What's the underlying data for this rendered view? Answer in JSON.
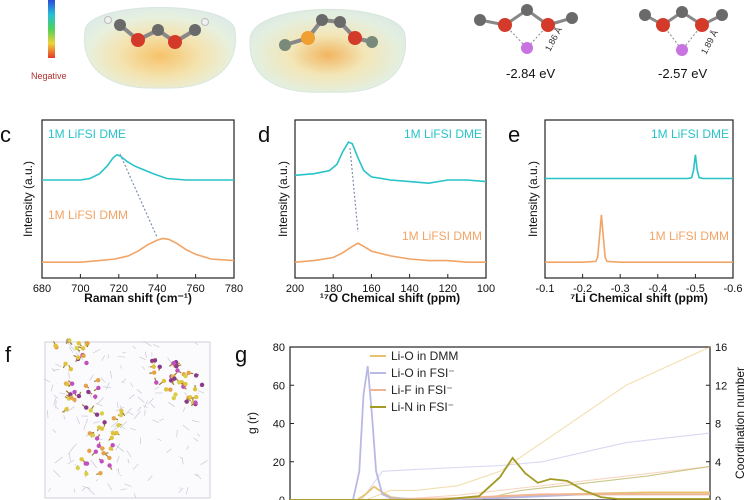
{
  "colors": {
    "dme": "#28c3c8",
    "dmm": "#f2a465",
    "li_o_dmm": "#e8c26d",
    "li_o_fsi": "#b9b9e6",
    "li_f_fsi": "#f2b591",
    "li_n_fsi": "#a39a26",
    "axis": "#222222",
    "dashed": "#7f8fb0"
  },
  "top_panel": {
    "legend_label": "Negative",
    "distance_1": "1.86 Å",
    "distance_2": "1.89 Å",
    "energy_1": "-2.84 eV",
    "energy_2": "-2.57 eV"
  },
  "panel_letters": {
    "c": "c",
    "d": "d",
    "e": "e",
    "f": "f",
    "g": "g"
  },
  "chart_data": [
    {
      "id": "c",
      "type": "line",
      "xlabel": "Raman shift (cm⁻¹)",
      "ylabel": "Intensity (a.u.)",
      "xlim": [
        680,
        780
      ],
      "xticks": [
        "680",
        "700",
        "720",
        "740",
        "760",
        "780"
      ],
      "series": [
        {
          "name": "1M LiFSI DME",
          "x": [
            680,
            690,
            700,
            705,
            710,
            714,
            717,
            719,
            721,
            724,
            728,
            732,
            738,
            745,
            755,
            765,
            780
          ],
          "y": [
            0.62,
            0.62,
            0.62,
            0.63,
            0.66,
            0.71,
            0.76,
            0.78,
            0.77,
            0.74,
            0.71,
            0.69,
            0.66,
            0.63,
            0.62,
            0.62,
            0.62
          ]
        },
        {
          "name": "1M LiFSI DMM",
          "x": [
            680,
            690,
            700,
            710,
            718,
            725,
            730,
            735,
            740,
            743,
            746,
            750,
            755,
            760,
            768,
            780
          ],
          "y": [
            0.1,
            0.1,
            0.1,
            0.11,
            0.12,
            0.14,
            0.17,
            0.21,
            0.24,
            0.25,
            0.245,
            0.22,
            0.18,
            0.15,
            0.12,
            0.11
          ]
        }
      ]
    },
    {
      "id": "d",
      "type": "line",
      "xlabel": "¹⁷O Chemical shift (ppm)",
      "ylabel": "Intensity (a.u.)",
      "xlim": [
        200,
        100
      ],
      "xticks": [
        "200",
        "180",
        "160",
        "140",
        "120",
        "100"
      ],
      "series": [
        {
          "name": "1M LiFSI DME",
          "x": [
            200,
            190,
            182,
            178,
            175,
            172,
            170,
            167,
            164,
            160,
            150,
            140,
            130,
            120,
            110,
            100
          ],
          "y": [
            0.65,
            0.66,
            0.68,
            0.72,
            0.8,
            0.86,
            0.85,
            0.76,
            0.68,
            0.64,
            0.62,
            0.61,
            0.6,
            0.62,
            0.62,
            0.61
          ]
        },
        {
          "name": "1M LiFSI DMM",
          "x": [
            200,
            190,
            180,
            175,
            170,
            167,
            164,
            160,
            150,
            140,
            130,
            120,
            110,
            100
          ],
          "y": [
            0.1,
            0.11,
            0.13,
            0.16,
            0.2,
            0.22,
            0.2,
            0.17,
            0.14,
            0.12,
            0.11,
            0.11,
            0.1,
            0.1
          ]
        }
      ]
    },
    {
      "id": "e",
      "type": "line",
      "xlabel": "⁷Li Chemical shift (ppm)",
      "ylabel": "Intensity (a.u.)",
      "xlim": [
        -0.1,
        -0.6
      ],
      "xticks": [
        "-0.1",
        "-0.2",
        "-0.3",
        "-0.4",
        "-0.5",
        "-0.6"
      ],
      "series": [
        {
          "name": "1M LiFSI DME",
          "x": [
            -0.1,
            -0.3,
            -0.48,
            -0.49,
            -0.495,
            -0.5,
            -0.505,
            -0.51,
            -0.52,
            -0.6
          ],
          "y": [
            0.63,
            0.63,
            0.63,
            0.635,
            0.68,
            0.78,
            0.68,
            0.635,
            0.63,
            0.63
          ]
        },
        {
          "name": "1M LiFSI DMM",
          "x": [
            -0.1,
            -0.2,
            -0.235,
            -0.24,
            -0.245,
            -0.25,
            -0.255,
            -0.26,
            -0.265,
            -0.3,
            -0.6
          ],
          "y": [
            0.1,
            0.1,
            0.105,
            0.13,
            0.26,
            0.4,
            0.26,
            0.13,
            0.105,
            0.1,
            0.1
          ]
        }
      ]
    },
    {
      "id": "g",
      "type": "line",
      "ylabel": "g (r)",
      "ylabel_right": "Coordination number",
      "ylim": [
        0,
        80
      ],
      "yticks": [
        "0",
        "20",
        "40",
        "60",
        "80"
      ],
      "ylim_right": [
        0,
        16
      ],
      "yticks_right": [
        "0",
        "4",
        "8",
        "12",
        "16"
      ],
      "xlim": [
        0,
        10
      ],
      "series": [
        {
          "name": "Li-O in DMM",
          "x": [
            0,
            1.6,
            1.8,
            2.0,
            2.2,
            2.4,
            2.8,
            3.5,
            4.5,
            5.5,
            6.5,
            7.5,
            8.5,
            10
          ],
          "y": [
            0,
            0,
            3,
            7,
            4,
            1.5,
            0.5,
            0.5,
            1,
            2,
            3,
            3.5,
            4,
            4
          ]
        },
        {
          "name": "Li-O in FSI⁻",
          "x": [
            0,
            1.5,
            1.65,
            1.75,
            1.85,
            1.95,
            2.05,
            2.2,
            2.4,
            3,
            4,
            5,
            6,
            7,
            8,
            10
          ],
          "y": [
            0,
            0,
            15,
            55,
            70,
            45,
            15,
            3,
            1,
            0.5,
            0.5,
            1,
            2,
            3,
            3,
            3
          ]
        },
        {
          "name": "Li-F in FSI⁻",
          "x": [
            0,
            2,
            3,
            4,
            5,
            6,
            7,
            8,
            9,
            10
          ],
          "y": [
            0,
            0,
            0.5,
            1,
            2,
            3,
            3,
            3,
            3,
            3
          ]
        },
        {
          "name": "Li-N in FSI⁻",
          "x": [
            0,
            2.5,
            3.5,
            4.5,
            5.0,
            5.3,
            5.6,
            5.9,
            6.2,
            6.6,
            7.0,
            7.4,
            7.8,
            8.2,
            8.8,
            10
          ],
          "y": [
            0,
            0,
            0,
            2,
            12,
            22,
            14,
            9,
            11,
            10,
            5,
            1.5,
            0.5,
            0.5,
            0.5,
            0.5
          ]
        }
      ],
      "coordination_series": [
        {
          "name": "Li-O in DMM",
          "x": [
            0,
            1.8,
            2.4,
            3,
            4,
            5,
            6,
            7,
            8,
            9,
            10
          ],
          "y": [
            0,
            0,
            1,
            1,
            1.5,
            3,
            6,
            9,
            12,
            14,
            16
          ]
        },
        {
          "name": "Li-O in FSI⁻",
          "x": [
            0,
            1.7,
            2.2,
            3,
            4,
            5,
            6,
            7,
            8,
            9,
            10
          ],
          "y": [
            0,
            0,
            3,
            3.2,
            3.4,
            3.6,
            4,
            5,
            6,
            6.5,
            7
          ]
        },
        {
          "name": "Li-F in FSI⁻",
          "x": [
            0,
            2,
            3,
            4,
            5,
            6,
            7,
            8,
            9,
            10
          ],
          "y": [
            0,
            0,
            0.2,
            0.5,
            1,
            1.5,
            2,
            2.5,
            3,
            3.5
          ]
        },
        {
          "name": "Li-N in FSI⁻",
          "x": [
            0,
            4.5,
            5.5,
            6.5,
            7.5,
            8.5,
            10
          ],
          "y": [
            0,
            0,
            1,
            1.5,
            2,
            2.5,
            3.5
          ]
        }
      ]
    }
  ]
}
